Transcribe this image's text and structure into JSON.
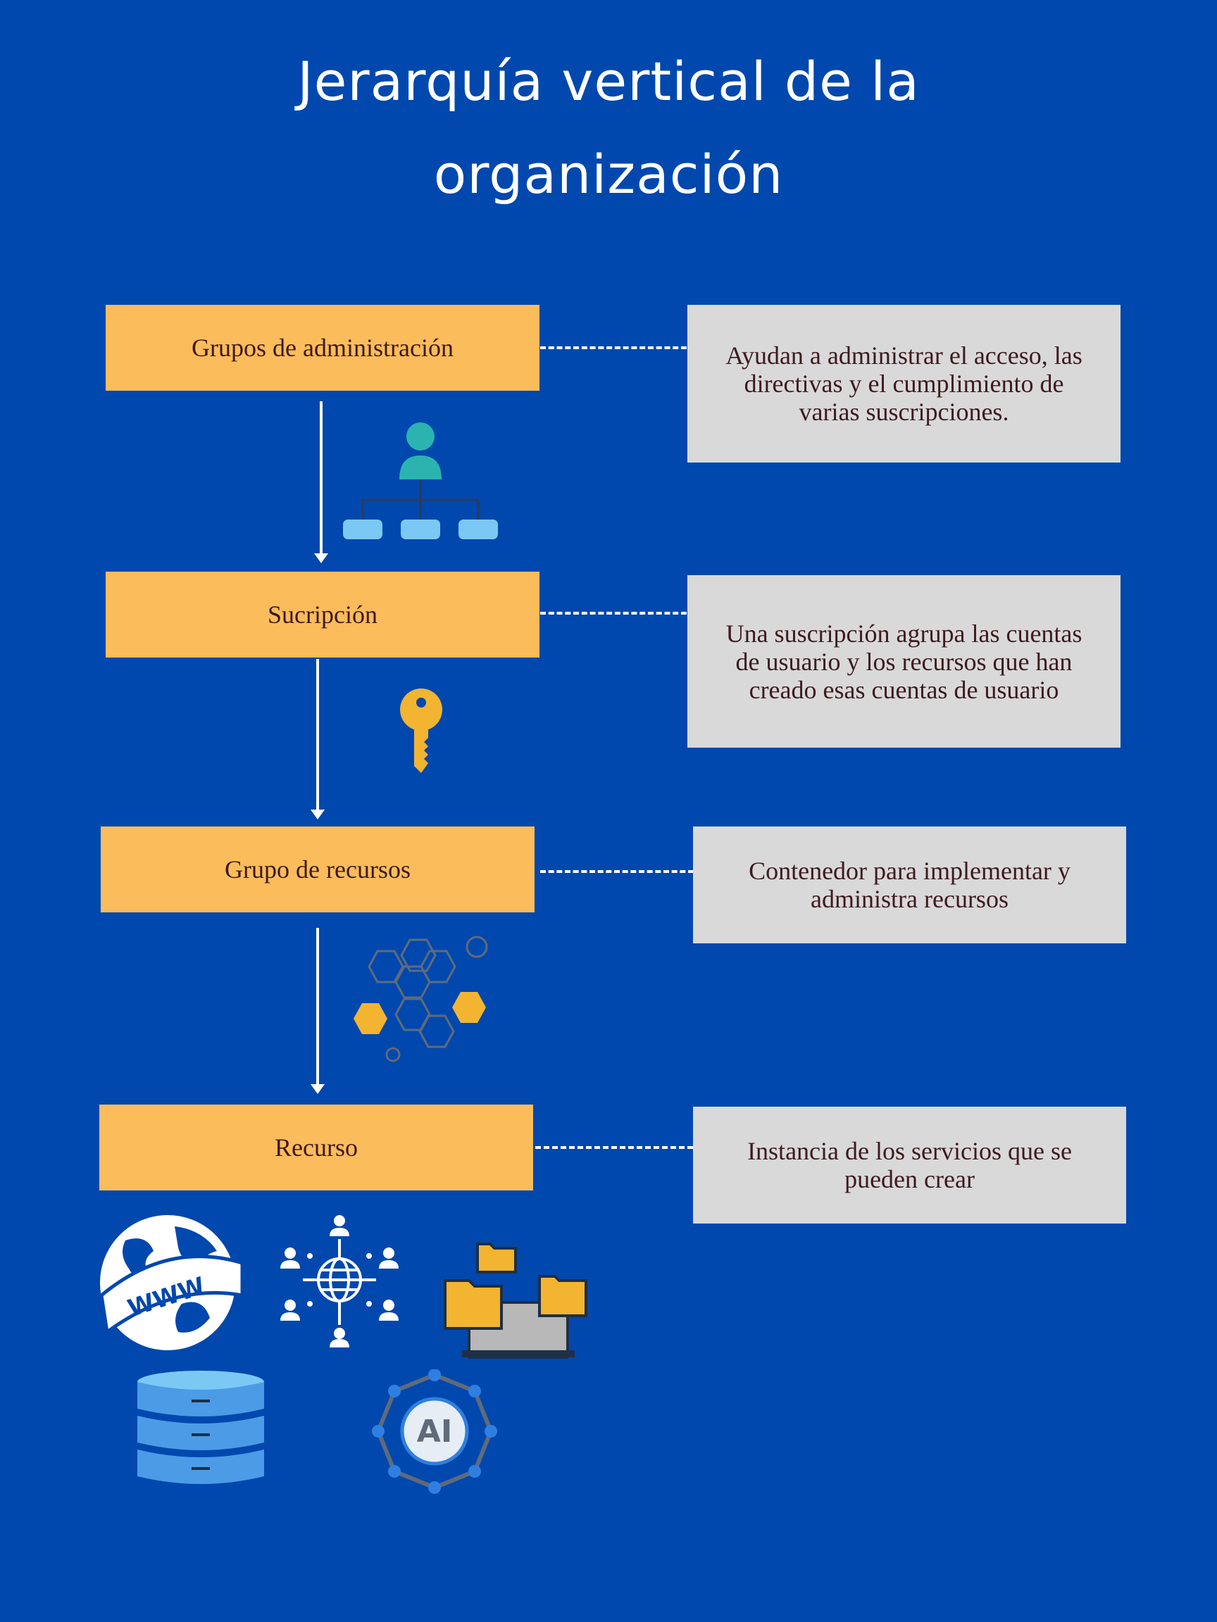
{
  "title": {
    "line1": "Jerarquía vertical de la",
    "line2": "organización"
  },
  "levels": [
    {
      "label": "Grupos de administración",
      "description": "Ayudan a administrar el acceso, las directivas y el cumplimiento de varias suscripciones."
    },
    {
      "label": "Sucripción",
      "description": "Una suscripción agrupa las cuentas de usuario y los recursos que han creado esas cuentas de usuario"
    },
    {
      "label": "Grupo de recursos",
      "description": "Contenedor para implementar y administra recursos"
    },
    {
      "label": "Recurso",
      "description": "Instancia de los servicios que se pueden crear"
    }
  ],
  "icons": {
    "hierarchy": "org-hierarchy-icon",
    "subscription": "key-icon",
    "resource_group": "hexagon-cluster-icon",
    "resources": [
      "www-globe-icon",
      "network-people-icon",
      "folders-laptop-icon",
      "database-icon",
      "ai-network-icon"
    ],
    "www_text": "WWW",
    "ai_text": "AI"
  },
  "colors": {
    "background": "#0048ae",
    "level_box": "#fbbc5b",
    "description_box": "#d9d9d9",
    "text": "#3d1a1f"
  }
}
